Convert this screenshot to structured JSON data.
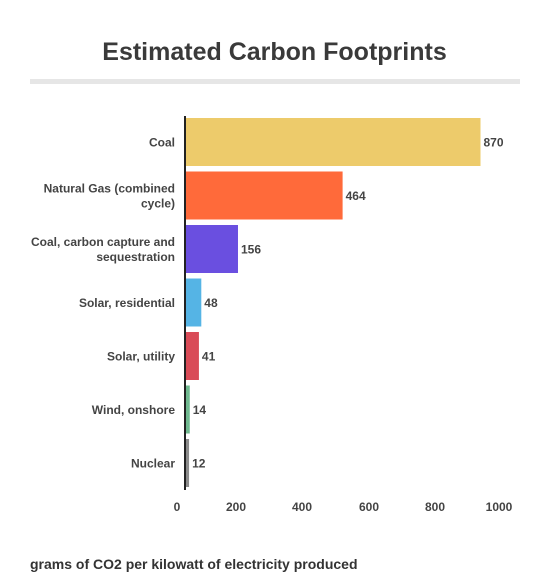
{
  "chart_data": {
    "type": "bar",
    "orientation": "horizontal",
    "title": "Estimated Carbon Footprints",
    "xlabel": "grams of CO2 per kilowatt of electricity produced",
    "ylabel": "",
    "xlim": [
      0,
      1000
    ],
    "xticks": [
      0,
      200,
      400,
      600,
      800,
      1000
    ],
    "grid": false,
    "categories": [
      {
        "label": [
          "Coal"
        ],
        "value": 870,
        "color": "#EDCB6B"
      },
      {
        "label": [
          "Natural Gas (combined",
          "cycle)"
        ],
        "value": 464,
        "color": "#FF6A3A"
      },
      {
        "label": [
          "Coal, carbon capture and",
          "sequestration"
        ],
        "value": 156,
        "color": "#6A4FE0"
      },
      {
        "label": [
          "Solar, residential"
        ],
        "value": 48,
        "color": "#55B4E5"
      },
      {
        "label": [
          "Solar, utility"
        ],
        "value": 41,
        "color": "#D94B57"
      },
      {
        "label": [
          "Wind, onshore"
        ],
        "value": 14,
        "color": "#6FB98F"
      },
      {
        "label": [
          "Nuclear"
        ],
        "value": 12,
        "color": "#8A8A8A"
      }
    ]
  }
}
